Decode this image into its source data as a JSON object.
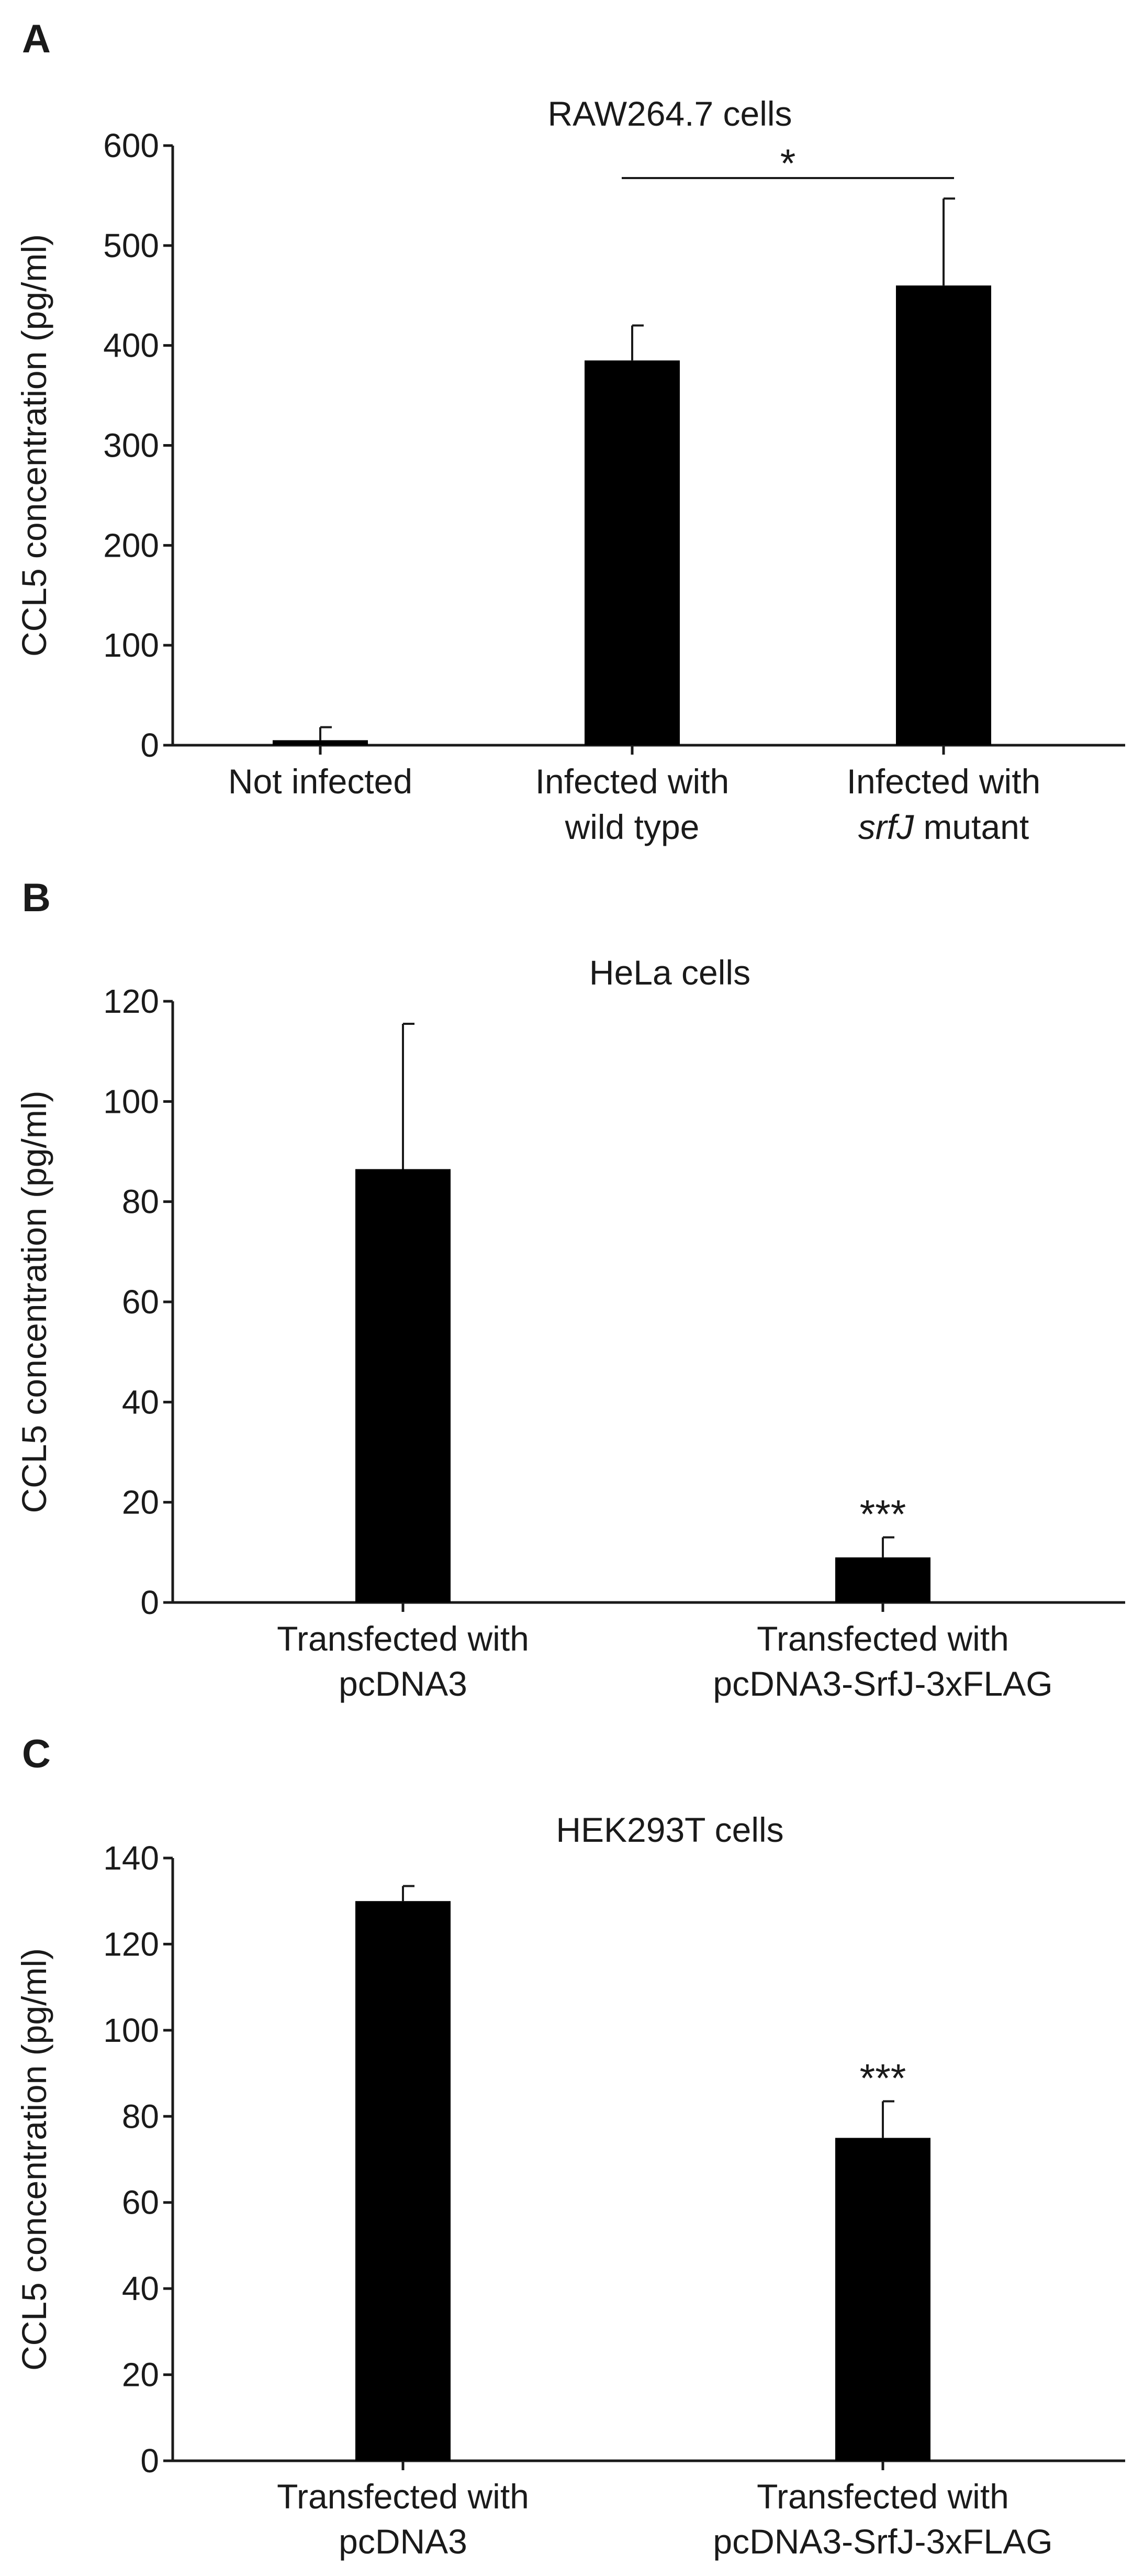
{
  "chart_data": [
    {
      "type": "bar",
      "panel": "A",
      "title": "RAW264.7 cells",
      "ylabel": "CCL5 concentration (pg/ml)",
      "xlabel": "",
      "ylim": [
        0,
        600
      ],
      "yticks": [
        0,
        100,
        200,
        300,
        400,
        500,
        600
      ],
      "categories": [
        [
          "Not infected"
        ],
        [
          "Infected with",
          "wild type"
        ],
        [
          "Infected with",
          "srfJ mutant"
        ]
      ],
      "values": [
        5,
        385,
        460
      ],
      "errors": [
        13,
        35,
        87
      ],
      "significance": [
        {
          "from": 1,
          "to": 2,
          "label": "*"
        }
      ],
      "bar_color": "#000000",
      "grid": false
    },
    {
      "type": "bar",
      "panel": "B",
      "title": "HeLa cells",
      "ylabel": "CCL5 concentration (pg/ml)",
      "xlabel": "",
      "ylim": [
        0,
        120
      ],
      "yticks": [
        0,
        20,
        40,
        60,
        80,
        100,
        120
      ],
      "categories": [
        [
          "Transfected with",
          "pcDNA3"
        ],
        [
          "Transfected with",
          "pcDNA3-SrfJ-3xFLAG"
        ]
      ],
      "values": [
        86.5,
        9
      ],
      "errors": [
        29,
        4
      ],
      "bar_labels": [
        "",
        "***"
      ],
      "bar_color": "#000000",
      "grid": false
    },
    {
      "type": "bar",
      "panel": "C",
      "title": "HEK293T cells",
      "ylabel": "CCL5 concentration (pg/ml)",
      "xlabel": "",
      "ylim": [
        0,
        140
      ],
      "yticks": [
        0,
        20,
        40,
        60,
        80,
        100,
        120,
        140
      ],
      "categories": [
        [
          "Transfected with",
          "pcDNA3"
        ],
        [
          "Transfected with",
          "pcDNA3-SrfJ-3xFLAG"
        ]
      ],
      "values": [
        130,
        75
      ],
      "errors": [
        3.5,
        8.5
      ],
      "bar_labels": [
        "",
        "***"
      ],
      "bar_color": "#000000",
      "grid": false
    }
  ]
}
